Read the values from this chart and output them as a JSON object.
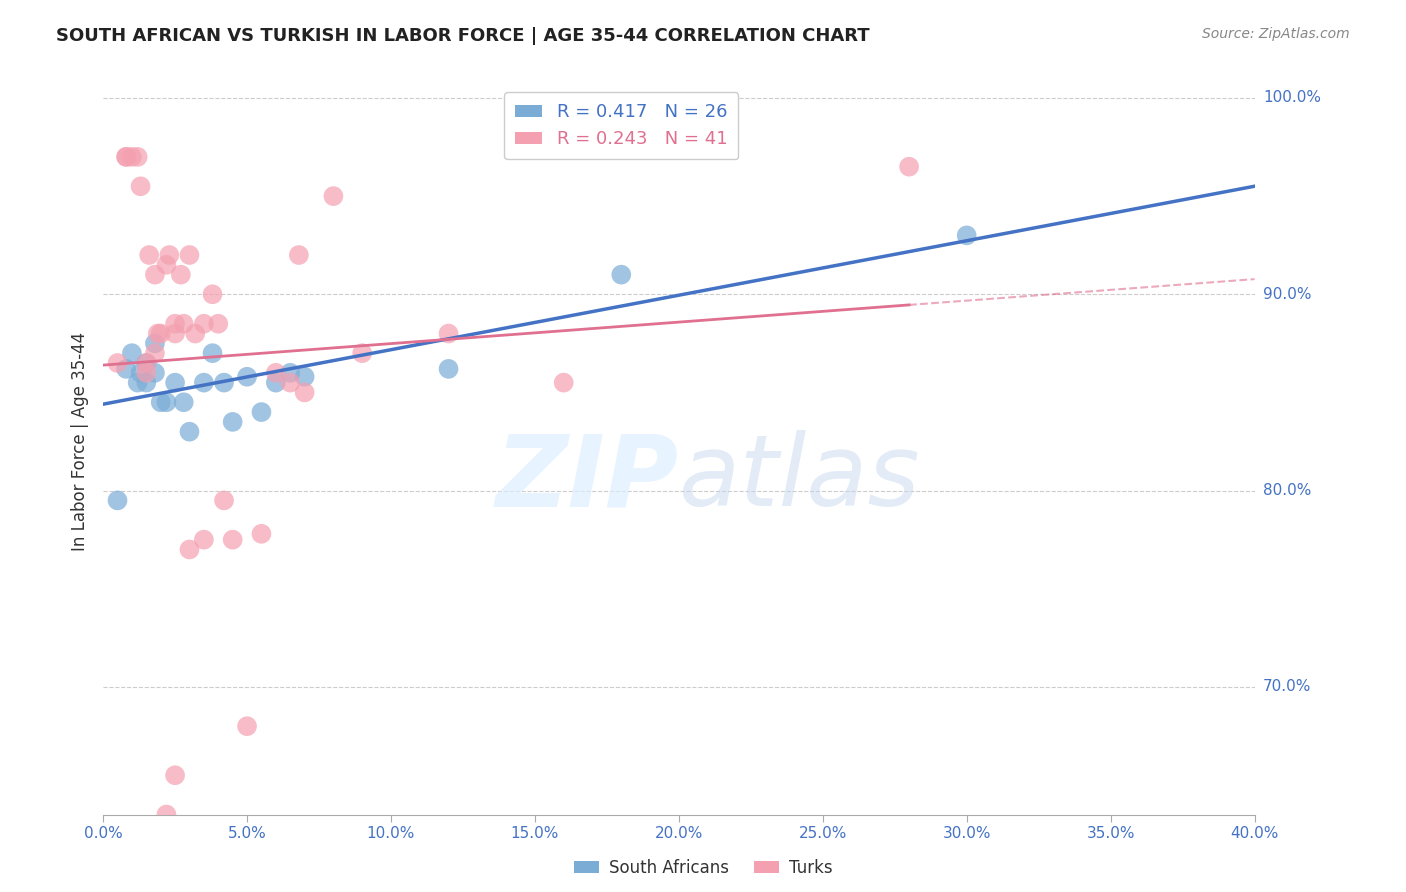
{
  "title": "SOUTH AFRICAN VS TURKISH IN LABOR FORCE | AGE 35-44 CORRELATION CHART",
  "source": "Source: ZipAtlas.com",
  "ylabel": "In Labor Force | Age 35-44",
  "ytick_labels": [
    "70.0%",
    "80.0%",
    "90.0%",
    "100.0%"
  ],
  "ytick_values": [
    0.7,
    0.8,
    0.9,
    1.0
  ],
  "xmin": 0.0,
  "xmax": 0.4,
  "ymin": 0.635,
  "ymax": 1.015,
  "blue_label": "R = 0.417   N = 26",
  "pink_label": "R = 0.243   N = 41",
  "title_color": "#222222",
  "axis_color": "#4472c4",
  "blue_color": "#7aacd6",
  "pink_color": "#f4a0b0",
  "blue_line_color": "#4472c4",
  "pink_line_color": "#e07090",
  "south_africans_x": [
    0.005,
    0.008,
    0.01,
    0.012,
    0.013,
    0.015,
    0.015,
    0.018,
    0.018,
    0.02,
    0.022,
    0.025,
    0.028,
    0.03,
    0.035,
    0.038,
    0.042,
    0.045,
    0.05,
    0.055,
    0.06,
    0.065,
    0.07,
    0.12,
    0.18,
    0.3
  ],
  "south_africans_y": [
    0.795,
    0.862,
    0.87,
    0.855,
    0.86,
    0.865,
    0.855,
    0.875,
    0.86,
    0.845,
    0.845,
    0.855,
    0.845,
    0.83,
    0.855,
    0.87,
    0.855,
    0.835,
    0.858,
    0.84,
    0.855,
    0.86,
    0.858,
    0.862,
    0.91,
    0.93
  ],
  "turks_x": [
    0.005,
    0.008,
    0.008,
    0.01,
    0.012,
    0.013,
    0.015,
    0.015,
    0.016,
    0.018,
    0.018,
    0.019,
    0.02,
    0.022,
    0.023,
    0.025,
    0.025,
    0.027,
    0.028,
    0.03,
    0.032,
    0.035,
    0.038,
    0.04,
    0.042,
    0.045,
    0.05,
    0.055,
    0.06,
    0.065,
    0.068,
    0.07,
    0.08,
    0.09,
    0.12,
    0.16,
    0.022,
    0.025,
    0.03,
    0.035,
    0.28
  ],
  "turks_y": [
    0.865,
    0.97,
    0.97,
    0.97,
    0.97,
    0.955,
    0.865,
    0.86,
    0.92,
    0.91,
    0.87,
    0.88,
    0.88,
    0.915,
    0.92,
    0.88,
    0.885,
    0.91,
    0.885,
    0.92,
    0.88,
    0.885,
    0.9,
    0.885,
    0.795,
    0.775,
    0.68,
    0.778,
    0.86,
    0.855,
    0.92,
    0.85,
    0.95,
    0.87,
    0.88,
    0.855,
    0.635,
    0.655,
    0.77,
    0.775,
    0.965
  ]
}
